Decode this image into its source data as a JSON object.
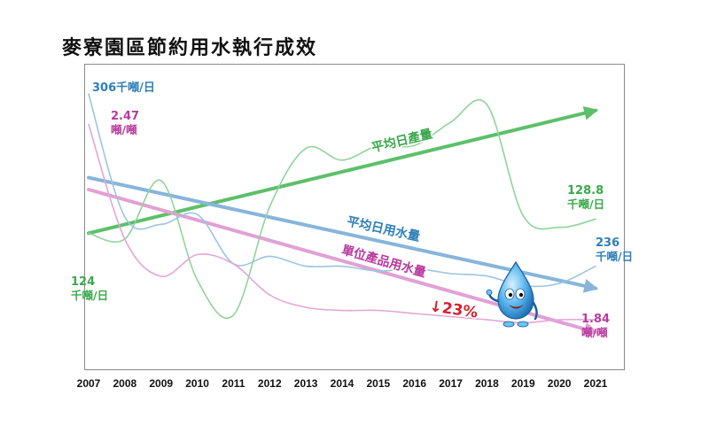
{
  "title": "麥寮園區節約用水執行成效",
  "colors": {
    "production": "#3aa84a",
    "production_thin": "#8fd49a",
    "usage": "#2f7fb8",
    "usage_thin": "#9cc4e2",
    "unit": "#b83a9c",
    "unit_thin": "#e3a6d6",
    "trend_green": "#5cc06a",
    "trend_blue": "#87b5db",
    "trend_pink": "#e1a1d5",
    "reduction_red": "#d6202a"
  },
  "chart_data": {
    "type": "line",
    "categories": [
      "2007",
      "2008",
      "2009",
      "2010",
      "2011",
      "2012",
      "2013",
      "2014",
      "2015",
      "2016",
      "2017",
      "2018",
      "2019",
      "2020",
      "2021"
    ],
    "series": [
      {
        "key": "production",
        "name": "平均日產量",
        "values": [
          124,
          122,
          142,
          108,
          96,
          133,
          153,
          149,
          154,
          154,
          162,
          168,
          130,
          126,
          128.8
        ],
        "trend_start": 124,
        "trend_end": 166,
        "start_label": [
          "124",
          "千噸/日"
        ],
        "end_label": [
          "128.8",
          "千噸/日"
        ]
      },
      {
        "key": "usage",
        "name": "平均日用水量",
        "values": [
          306,
          256,
          253,
          257,
          237,
          240,
          236,
          236,
          234,
          235,
          233,
          232,
          228,
          229,
          236
        ],
        "trend_start": 272,
        "trend_end": 227,
        "start_label": [
          "306千噸/日"
        ],
        "end_label": [
          "236",
          "千噸/日"
        ]
      },
      {
        "key": "unit",
        "name": "單位產品用水量",
        "values": [
          2.47,
          2.1,
          1.98,
          2.05,
          2.02,
          1.92,
          1.88,
          1.87,
          1.87,
          1.86,
          1.85,
          1.84,
          1.83,
          1.84,
          1.84
        ],
        "trend_start": 2.26,
        "trend_end": 1.8,
        "start_label": [
          "2.47",
          "噸/噸"
        ],
        "end_label": [
          "1.84",
          "噸/噸"
        ]
      }
    ],
    "annotation": "↓23%"
  }
}
